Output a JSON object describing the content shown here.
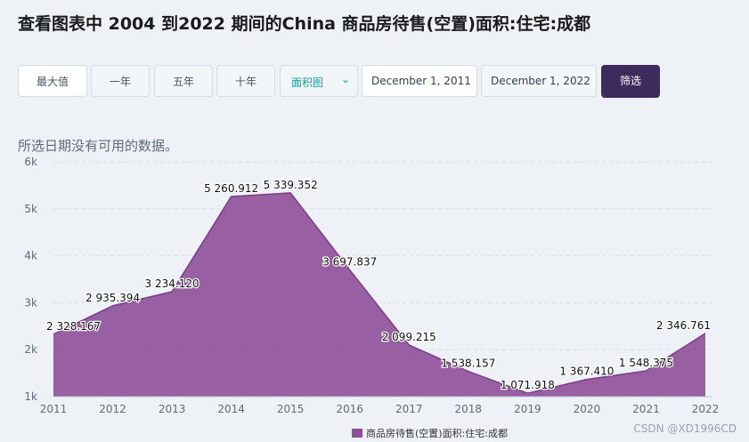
{
  "title": "查看图表中 2004 到2022 期间的China 商品房待售(空置)面积:住宅:成都",
  "toolbar": {
    "ranges": [
      "最大值",
      "一年",
      "五年",
      "十年"
    ],
    "chart_type": "面积图",
    "start_date": "December 1, 2011",
    "end_date": "December 1, 2022",
    "filter_label": "筛选"
  },
  "no_data_message": "所选日期没有可用的数据。",
  "watermark": "CSDN @XD1996CD",
  "colors": {
    "area": "#8e4f99",
    "filter_button": "#3f2a5c",
    "accent": "#15a39a"
  },
  "chart_data": {
    "type": "area",
    "title": "",
    "xlabel": "",
    "ylabel": "",
    "categories": [
      "2011",
      "2012",
      "2013",
      "2014",
      "2015",
      "2016",
      "2017",
      "2018",
      "2019",
      "2020",
      "2021",
      "2022"
    ],
    "series": [
      {
        "name": "商品房待售(空置)面积:住宅:成都",
        "values": [
          2328.167,
          2935.394,
          3234.12,
          5260.912,
          5339.352,
          3697.837,
          2099.215,
          1538.157,
          1071.918,
          1367.41,
          1548.375,
          2346.761
        ],
        "labels": [
          "2 328.167",
          "2 935.394",
          "3 234.120",
          "5 260.912",
          "5 339.352",
          "3 697.837",
          "2 099.215",
          "1 538.157",
          "1 071.918",
          "1 367.410",
          "1 548.375",
          "2 346.761"
        ]
      }
    ],
    "y_ticks": [
      1000,
      2000,
      3000,
      4000,
      5000,
      6000
    ],
    "y_tick_labels": [
      "1k",
      "2k",
      "3k",
      "4k",
      "5k",
      "6k"
    ],
    "ylim": [
      1000,
      6000
    ],
    "grid": true,
    "legend_position": "bottom-center"
  }
}
